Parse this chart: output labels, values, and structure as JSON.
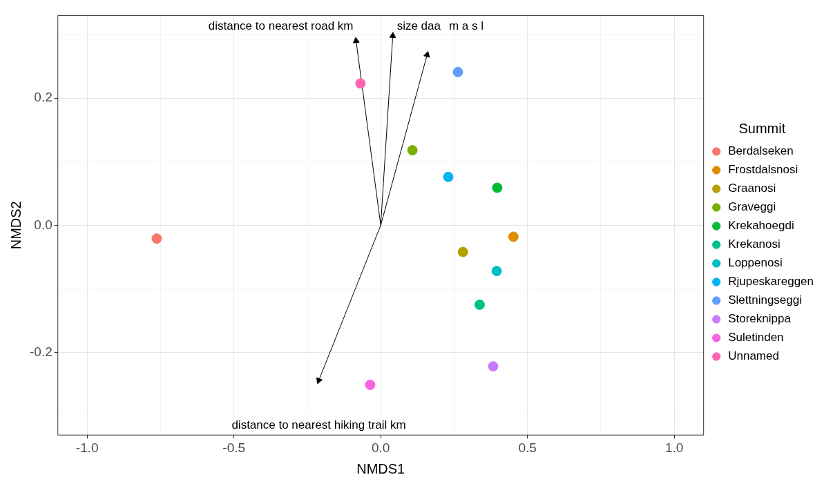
{
  "chart_data": {
    "type": "scatter",
    "xlabel": "NMDS1",
    "ylabel": "NMDS2",
    "legend_title": "Summit",
    "legend": "right",
    "grid": true,
    "marker": "circle",
    "xlim": [
      -1.1,
      1.1
    ],
    "ylim": [
      -0.33,
      0.33
    ],
    "xticks": [
      {
        "value": -1,
        "label": "-1.0"
      },
      {
        "value": -0.75,
        "label": null
      },
      {
        "value": -0.5,
        "label": "-0.5"
      },
      {
        "value": -0.25,
        "label": null
      },
      {
        "value": 0,
        "label": "0.0"
      },
      {
        "value": 0.25,
        "label": null
      },
      {
        "value": 0.5,
        "label": "0.5"
      },
      {
        "value": 0.75,
        "label": null
      },
      {
        "value": 1,
        "label": "1.0"
      }
    ],
    "yticks": [
      {
        "value": -0.3,
        "label": null
      },
      {
        "value": -0.2,
        "label": "-0.2"
      },
      {
        "value": -0.1,
        "label": null
      },
      {
        "value": 0,
        "label": "0.0"
      },
      {
        "value": 0.1,
        "label": null
      },
      {
        "value": 0.2,
        "label": "0.2"
      },
      {
        "value": 0.3,
        "label": null
      }
    ],
    "series": [
      {
        "name": "Berdalseken",
        "color": "#f8766d",
        "x": [
          -0.763
        ],
        "values": [
          -0.021
        ]
      },
      {
        "name": "Frostdalsnosi",
        "color": "#de8c00",
        "x": [
          0.452
        ],
        "values": [
          -0.018
        ]
      },
      {
        "name": "Graanosi",
        "color": "#b79f00",
        "x": [
          0.28
        ],
        "values": [
          -0.042
        ]
      },
      {
        "name": "Graveggi",
        "color": "#7cae00",
        "x": [
          0.108
        ],
        "values": [
          0.118
        ]
      },
      {
        "name": "Krekahoegdi",
        "color": "#00ba38",
        "x": [
          0.397
        ],
        "values": [
          0.059
        ]
      },
      {
        "name": "Krekanosi",
        "color": "#00c08b",
        "x": [
          0.337
        ],
        "values": [
          -0.125
        ]
      },
      {
        "name": "Loppenosi",
        "color": "#00bfc4",
        "x": [
          0.395
        ],
        "values": [
          -0.072
        ]
      },
      {
        "name": "Rjupeskareggen",
        "color": "#00b4f0",
        "x": [
          0.23
        ],
        "values": [
          0.076
        ]
      },
      {
        "name": "Slettningseggi",
        "color": "#619cff",
        "x": [
          0.263
        ],
        "values": [
          0.241
        ]
      },
      {
        "name": "Storeknippa",
        "color": "#c77cff",
        "x": [
          0.383
        ],
        "values": [
          -0.222
        ]
      },
      {
        "name": "Suletinden",
        "color": "#f564e3",
        "x": [
          -0.036
        ],
        "values": [
          -0.251
        ]
      },
      {
        "name": "Unnamed",
        "color": "#ff64b0",
        "x": [
          -0.069
        ],
        "values": [
          0.223
        ]
      },
      {
        "type": "line",
        "color": "#000000",
        "marker": "triangle",
        "x": [
          0,
          -0.084,
          null,
          0,
          0.041,
          null,
          0,
          0.158,
          null,
          0,
          -0.211
        ],
        "values": [
          0,
          0.29,
          null,
          0,
          0.298,
          null,
          0,
          0.268,
          null,
          0,
          -0.244
        ]
      }
    ],
    "annotations": [
      "distance to nearest road km",
      "size daa",
      "m a s l",
      "distance to nearest hiking trail km"
    ]
  }
}
